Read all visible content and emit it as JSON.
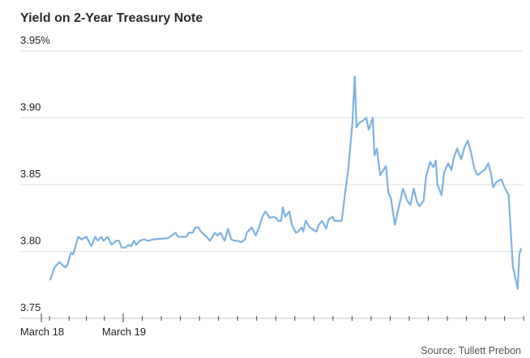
{
  "chart_data": {
    "type": "line",
    "title": "Yield on 2-Year Treasury Note",
    "xlabel": "",
    "ylabel": "",
    "source": "Source: Tullett Prebon",
    "ylim": [
      3.75,
      3.95
    ],
    "y_ticks": [
      {
        "value": 3.95,
        "label": "3.95%"
      },
      {
        "value": 3.9,
        "label": "3.90"
      },
      {
        "value": 3.85,
        "label": "3.85"
      },
      {
        "value": 3.8,
        "label": "3.80"
      },
      {
        "value": 3.75,
        "label": "3.75"
      }
    ],
    "x_unit": "days since March 18",
    "x_labels": [
      {
        "value": 0,
        "label": "March 18"
      },
      {
        "value": 1,
        "label": "March 19"
      }
    ],
    "x_minor_ticks": [
      0.1,
      0.34,
      0.55,
      0.77
    ],
    "x_tick_step": 0.233,
    "x_tick_max": 5.9,
    "grid": true,
    "line_color": "#7fb2e1",
    "series": [
      {
        "name": "2-Year Treasury yield",
        "x": [
          0.11,
          0.16,
          0.22,
          0.29,
          0.32,
          0.36,
          0.39,
          0.45,
          0.49,
          0.55,
          0.61,
          0.66,
          0.69,
          0.73,
          0.76,
          0.81,
          0.86,
          0.91,
          0.95,
          0.98,
          1.03,
          1.06,
          1.1,
          1.13,
          1.16,
          1.2,
          1.25,
          1.31,
          1.36,
          1.55,
          1.64,
          1.67,
          1.77,
          1.8,
          1.85,
          1.88,
          1.92,
          1.95,
          2.02,
          2.06,
          2.12,
          2.15,
          2.19,
          2.24,
          2.28,
          2.32,
          2.36,
          2.4,
          2.44,
          2.49,
          2.51,
          2.57,
          2.62,
          2.66,
          2.7,
          2.74,
          2.79,
          2.83,
          2.87,
          2.89,
          2.93,
          2.95,
          2.98,
          3.03,
          3.06,
          3.11,
          3.14,
          3.18,
          3.2,
          3.23,
          3.28,
          3.33,
          3.36,
          3.39,
          3.43,
          3.48,
          3.51,
          3.56,
          3.58,
          3.67,
          3.7,
          3.75,
          3.8,
          3.83,
          3.85,
          3.88,
          3.93,
          3.97,
          4.0,
          4.05,
          4.07,
          4.1,
          4.14,
          4.21,
          4.24,
          4.27,
          4.32,
          4.37,
          4.42,
          4.47,
          4.51,
          4.55,
          4.59,
          4.62,
          4.67,
          4.7,
          4.75,
          4.79,
          4.82,
          4.84,
          4.89,
          4.92,
          4.97,
          5.01,
          5.04,
          5.08,
          5.13,
          5.17,
          5.21,
          5.25,
          5.29,
          5.33,
          5.39,
          5.42,
          5.46,
          5.49,
          5.52,
          5.56,
          5.62,
          5.66,
          5.71,
          5.76,
          5.82,
          5.84,
          5.86
        ],
        "y": [
          3.779,
          3.788,
          3.792,
          3.788,
          3.79,
          3.799,
          3.798,
          3.811,
          3.809,
          3.811,
          3.804,
          3.811,
          3.808,
          3.811,
          3.808,
          3.811,
          3.805,
          3.808,
          3.808,
          3.803,
          3.803,
          3.805,
          3.804,
          3.808,
          3.805,
          3.808,
          3.809,
          3.808,
          3.809,
          3.81,
          3.814,
          3.811,
          3.811,
          3.814,
          3.814,
          3.818,
          3.818,
          3.815,
          3.811,
          3.808,
          3.814,
          3.812,
          3.814,
          3.808,
          3.817,
          3.809,
          3.808,
          3.808,
          3.807,
          3.809,
          3.814,
          3.818,
          3.812,
          3.818,
          3.826,
          3.83,
          3.825,
          3.826,
          3.825,
          3.823,
          3.823,
          3.833,
          3.826,
          3.83,
          3.82,
          3.814,
          3.815,
          3.818,
          3.815,
          3.823,
          3.818,
          3.816,
          3.815,
          3.82,
          3.823,
          3.817,
          3.824,
          3.826,
          3.823,
          3.823,
          3.838,
          3.862,
          3.896,
          3.931,
          3.893,
          3.896,
          3.898,
          3.9,
          3.891,
          3.9,
          3.872,
          3.877,
          3.857,
          3.864,
          3.844,
          3.84,
          3.82,
          3.834,
          3.847,
          3.838,
          3.835,
          3.847,
          3.837,
          3.834,
          3.838,
          3.856,
          3.867,
          3.863,
          3.868,
          3.85,
          3.842,
          3.859,
          3.866,
          3.861,
          3.87,
          3.877,
          3.869,
          3.878,
          3.883,
          3.874,
          3.862,
          3.857,
          3.86,
          3.861,
          3.866,
          3.859,
          3.848,
          3.852,
          3.854,
          3.848,
          3.842,
          3.789,
          3.772,
          3.798,
          3.802
        ]
      }
    ]
  }
}
